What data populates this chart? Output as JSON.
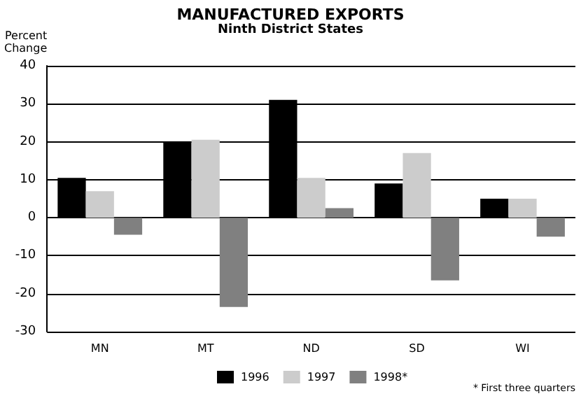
{
  "chart_data": {
    "type": "bar",
    "title": "MANUFACTURED EXPORTS",
    "subtitle": "Ninth District States",
    "ylabel": "Percent\nChange",
    "categories": [
      "MN",
      "MT",
      "ND",
      "SD",
      "WI"
    ],
    "series": [
      {
        "name": "1996",
        "color": "#000000",
        "values": [
          10.5,
          20,
          31,
          9,
          5
        ]
      },
      {
        "name": "1997",
        "color": "#cccccc",
        "values": [
          7,
          20.5,
          10.5,
          17,
          5
        ]
      },
      {
        "name": "1998*",
        "color": "#808080",
        "values": [
          -4.5,
          -23.5,
          2.5,
          -16.5,
          -5
        ]
      }
    ],
    "ylim": [
      -30,
      40
    ],
    "yticks": [
      -30,
      -20,
      -10,
      0,
      10,
      20,
      30,
      40
    ],
    "grid": "y",
    "legend": "bottom",
    "annotations": [
      "* First three quarters"
    ]
  }
}
